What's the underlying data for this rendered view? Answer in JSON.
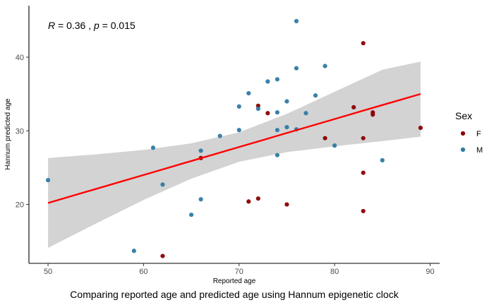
{
  "chart_data": {
    "type": "scatter",
    "caption": "Comparing reported age and predicted age using Hannum epigenetic clock",
    "xlabel": "Reported age",
    "ylabel": "Hannum predicted age",
    "xlim": [
      48,
      91
    ],
    "ylim": [
      12,
      47
    ],
    "xticks": [
      50,
      60,
      70,
      80,
      90
    ],
    "yticks": [
      20,
      30,
      40
    ],
    "grid": false,
    "annotation": {
      "r_symbol": "R",
      "r_text": " = 0.36 , ",
      "p_symbol": "p",
      "p_text": " = 0.015"
    },
    "legend": {
      "title": "Sex",
      "position": "right",
      "items": [
        {
          "label": "F",
          "color": "#8b0000"
        },
        {
          "label": "M",
          "color": "#2e7aa5"
        }
      ]
    },
    "series": [
      {
        "name": "F",
        "color": "#8b0000",
        "x": [
          62,
          66,
          71,
          72,
          72,
          73,
          75,
          79,
          82,
          83,
          83,
          83,
          83,
          84,
          84,
          89
        ],
        "y": [
          13.0,
          26.3,
          20.4,
          20.8,
          33.4,
          32.4,
          20.0,
          29.0,
          33.2,
          41.9,
          29.0,
          24.3,
          19.1,
          32.5,
          32.2,
          30.4
        ]
      },
      {
        "name": "M",
        "color": "#2e7aa5",
        "x": [
          50,
          59,
          61,
          62,
          65,
          66,
          66,
          68,
          70,
          70,
          71,
          72,
          73,
          74,
          74,
          74,
          74,
          75,
          75,
          76,
          76,
          76,
          77,
          78,
          79,
          80,
          85
        ],
        "y": [
          23.3,
          13.7,
          27.7,
          22.7,
          18.6,
          20.7,
          27.3,
          29.3,
          33.3,
          30.1,
          35.1,
          33.0,
          36.7,
          37.0,
          32.5,
          30.1,
          26.7,
          34.0,
          30.5,
          44.9,
          38.5,
          30.2,
          32.4,
          34.8,
          38.8,
          28.0,
          26.0
        ]
      }
    ],
    "regression": {
      "color": "#ff0000",
      "band_color": "#d3d3d3",
      "x": [
        50,
        55,
        60,
        65,
        70,
        75,
        80,
        85,
        89
      ],
      "y": [
        20.2,
        22.1,
        24.0,
        25.9,
        27.8,
        29.7,
        31.6,
        33.5,
        35.0
      ],
      "lower": [
        14.1,
        17.4,
        20.6,
        23.5,
        25.8,
        27.1,
        27.9,
        28.6,
        29.2
      ],
      "upper": [
        26.3,
        26.8,
        27.4,
        28.3,
        29.8,
        32.3,
        35.3,
        38.3,
        39.4
      ]
    }
  }
}
